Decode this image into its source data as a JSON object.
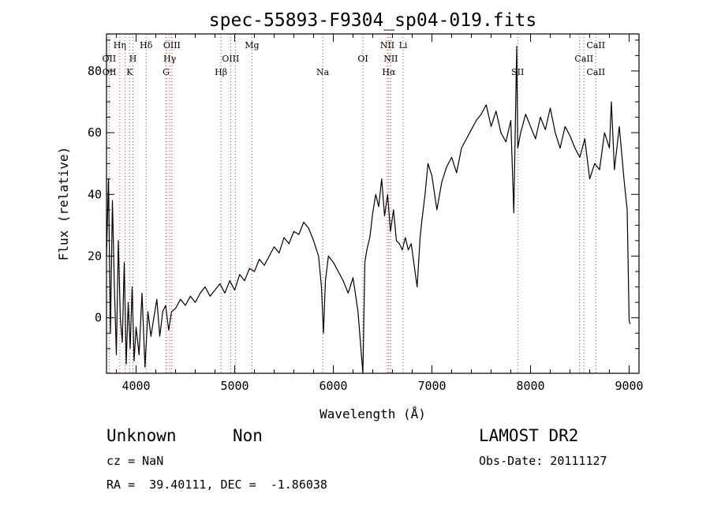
{
  "chart_data": {
    "type": "line",
    "title": "spec-55893-F9304_sp04-019.fits",
    "xlabel": "Wavelength (Å)",
    "ylabel": "Flux (relative)",
    "xlim": [
      3700,
      9100
    ],
    "ylim": [
      -18,
      92
    ],
    "xticks": [
      4000,
      5000,
      6000,
      7000,
      8000,
      9000
    ],
    "yticks": [
      0,
      20,
      40,
      60,
      80
    ],
    "grid": false,
    "series": [
      {
        "x": [
          3700,
          3720,
          3740,
          3760,
          3780,
          3800,
          3820,
          3840,
          3860,
          3880,
          3900,
          3920,
          3940,
          3960,
          3980,
          4000,
          4030,
          4060,
          4090,
          4120,
          4150,
          4180,
          4210,
          4240,
          4270,
          4300,
          4330,
          4360,
          4400,
          4450,
          4500,
          4550,
          4600,
          4650,
          4700,
          4750,
          4800,
          4850,
          4900,
          4950,
          5000,
          5050,
          5100,
          5150,
          5200,
          5250,
          5300,
          5350,
          5400,
          5450,
          5500,
          5550,
          5600,
          5650,
          5700,
          5750,
          5800,
          5850,
          5880,
          5900,
          5920,
          5950,
          6000,
          6050,
          6100,
          6150,
          6200,
          6250,
          6280,
          6300,
          6320,
          6340,
          6370,
          6400,
          6430,
          6460,
          6490,
          6520,
          6550,
          6580,
          6610,
          6640,
          6670,
          6700,
          6730,
          6760,
          6790,
          6820,
          6850,
          6880,
          6900,
          6930,
          6960,
          7000,
          7050,
          7100,
          7150,
          7200,
          7250,
          7300,
          7350,
          7400,
          7450,
          7500,
          7550,
          7600,
          7650,
          7700,
          7750,
          7800,
          7830,
          7860,
          7870,
          7900,
          7950,
          8000,
          8050,
          8100,
          8150,
          8200,
          8250,
          8300,
          8350,
          8400,
          8450,
          8500,
          8550,
          8600,
          8650,
          8700,
          8750,
          8800,
          8820,
          8850,
          8900,
          8950,
          8980,
          9000,
          9010
        ],
        "y": [
          20,
          45,
          -5,
          38,
          10,
          -12,
          25,
          0,
          -8,
          18,
          -15,
          5,
          -10,
          10,
          -14,
          -3,
          -12,
          8,
          -16,
          2,
          -6,
          0,
          6,
          -6,
          2,
          4,
          -4,
          2,
          3,
          6,
          4,
          7,
          5,
          8,
          10,
          7,
          9,
          11,
          8,
          12,
          9,
          14,
          12,
          16,
          15,
          19,
          17,
          20,
          23,
          21,
          26,
          24,
          28,
          27,
          31,
          29,
          25,
          20,
          10,
          -5,
          12,
          20,
          18,
          15,
          12,
          8,
          13,
          2,
          -10,
          -18,
          18,
          22,
          26,
          34,
          40,
          36,
          45,
          33,
          40,
          28,
          35,
          25,
          24,
          22,
          26,
          22,
          24,
          17,
          10,
          26,
          32,
          40,
          50,
          46,
          35,
          44,
          49,
          52,
          47,
          55,
          58,
          61,
          64,
          66,
          69,
          62,
          67,
          60,
          57,
          64,
          34,
          88,
          55,
          60,
          66,
          62,
          58,
          65,
          61,
          68,
          60,
          55,
          62,
          59,
          55,
          52,
          58,
          45,
          50,
          48,
          60,
          55,
          70,
          48,
          62,
          44,
          35,
          -1,
          -2
        ]
      }
    ],
    "line_markers": [
      {
        "label": "Hη",
        "wavelength": 3835,
        "row": 1
      },
      {
        "label": "OII",
        "wavelength": 3727,
        "row": 2
      },
      {
        "label": "OII",
        "wavelength": 3729,
        "row": 3
      },
      {
        "label": "H",
        "wavelength": 3968,
        "row": 2
      },
      {
        "label": "K",
        "wavelength": 3934,
        "row": 3
      },
      {
        "label": "Hδ",
        "wavelength": 4102,
        "row": 1
      },
      {
        "label": "OIII",
        "wavelength": 4363,
        "row": 1
      },
      {
        "label": "Hγ",
        "wavelength": 4341,
        "row": 2
      },
      {
        "label": "G",
        "wavelength": 4304,
        "row": 3
      },
      {
        "label": "Mg",
        "wavelength": 5175,
        "row": 1
      },
      {
        "label": "OIII",
        "wavelength": 4959,
        "row": 2
      },
      {
        "label": "Hβ",
        "wavelength": 4861,
        "row": 3
      },
      {
        "label": "Na",
        "wavelength": 5893,
        "row": 3
      },
      {
        "label": "NII",
        "wavelength": 6548,
        "row": 1
      },
      {
        "label": "Li",
        "wavelength": 6708,
        "row": 1
      },
      {
        "label": "OI",
        "wavelength": 6300,
        "row": 2
      },
      {
        "label": "NII",
        "wavelength": 6583,
        "row": 2
      },
      {
        "label": "Hα",
        "wavelength": 6563,
        "row": 3
      },
      {
        "label": "SII",
        "wavelength": 7870,
        "row": 3
      },
      {
        "label": "CaII",
        "wavelength": 8662,
        "row": 1
      },
      {
        "label": "CaII",
        "wavelength": 8542,
        "row": 2
      },
      {
        "label": "CaII",
        "wavelength": 8662,
        "row": 3
      }
    ],
    "marker_lines_wavelengths": [
      3727,
      3835,
      3889,
      3934,
      3968,
      4102,
      4304,
      4341,
      4363,
      4861,
      4959,
      5007,
      5175,
      5893,
      6300,
      6548,
      6563,
      6583,
      6708,
      7870,
      8498,
      8542,
      8662
    ]
  },
  "info": {
    "class": "Unknown",
    "subclass": "Non",
    "survey": "LAMOST DR2",
    "cz": "cz = NaN",
    "obs_date": "Obs-Date: 20111127",
    "coords": "RA =  39.40111, DEC =  -1.86038"
  }
}
